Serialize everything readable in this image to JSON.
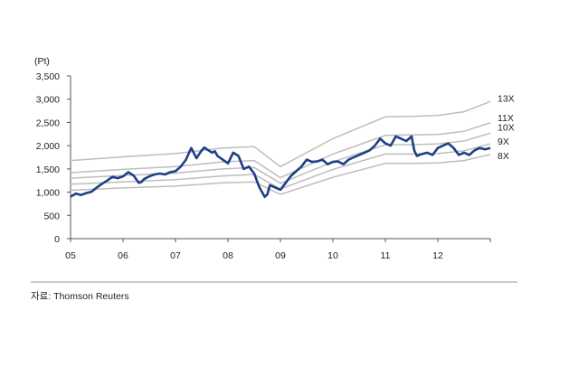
{
  "chart_data": {
    "type": "line",
    "y_unit_label": "(Pt)",
    "ylim": [
      0,
      3500
    ],
    "y_ticks": [
      0,
      500,
      1000,
      1500,
      2000,
      2500,
      3000,
      3500
    ],
    "y_tick_labels": [
      "0",
      "500",
      "1,000",
      "1,500",
      "2,000",
      "2,500",
      "3,000",
      "3,500"
    ],
    "xlim": [
      2005.0,
      2013.0
    ],
    "x_ticks": [
      2005,
      2006,
      2007,
      2008,
      2009,
      2010,
      2011,
      2012
    ],
    "x_tick_labels": [
      "05",
      "06",
      "07",
      "08",
      "09",
      "10",
      "11",
      "12"
    ],
    "grid": false,
    "source": "자료: Thomson Reuters",
    "main_color": "#1f3f86",
    "band_color": "#bdbdbd",
    "series": [
      {
        "x": [
          2005.0,
          2005.1,
          2005.2,
          2005.3,
          2005.4,
          2005.5,
          2005.6,
          2005.7,
          2005.8,
          2005.9,
          2006.0,
          2006.1,
          2006.2,
          2006.3,
          2006.35,
          2006.4,
          2006.5,
          2006.6,
          2006.7,
          2006.8,
          2006.9,
          2007.0,
          2007.1,
          2007.2,
          2007.3,
          2007.4,
          2007.5,
          2007.55,
          2007.6,
          2007.7,
          2007.75,
          2007.8,
          2007.9,
          2008.0,
          2008.1,
          2008.2,
          2008.3,
          2008.4,
          2008.5,
          2008.6,
          2008.7,
          2008.75,
          2008.8,
          2008.9,
          2009.0,
          2009.1,
          2009.2,
          2009.3,
          2009.4,
          2009.5,
          2009.6,
          2009.7,
          2009.8,
          2009.9,
          2010.0,
          2010.1,
          2010.2,
          2010.3,
          2010.4,
          2010.5,
          2010.6,
          2010.7,
          2010.8,
          2010.9,
          2011.0,
          2011.1,
          2011.2,
          2011.3,
          2011.4,
          2011.5,
          2011.55,
          2011.6,
          2011.65,
          2011.7,
          2011.8,
          2011.9,
          2012.0,
          2012.1,
          2012.2,
          2012.3,
          2012.4,
          2012.5,
          2012.6,
          2012.7,
          2012.8,
          2012.9,
          2013.0
        ],
        "values": [
          900,
          970,
          940,
          980,
          1010,
          1100,
          1180,
          1250,
          1330,
          1300,
          1340,
          1430,
          1360,
          1200,
          1220,
          1280,
          1340,
          1380,
          1400,
          1380,
          1430,
          1450,
          1550,
          1700,
          1950,
          1730,
          1900,
          1960,
          1920,
          1850,
          1880,
          1780,
          1700,
          1620,
          1850,
          1780,
          1500,
          1550,
          1400,
          1100,
          900,
          950,
          1150,
          1100,
          1050,
          1200,
          1350,
          1450,
          1550,
          1700,
          1650,
          1660,
          1700,
          1600,
          1650,
          1660,
          1600,
          1700,
          1750,
          1800,
          1850,
          1900,
          2000,
          2150,
          2050,
          2000,
          2200,
          2150,
          2100,
          2200,
          1900,
          1780,
          1800,
          1820,
          1850,
          1800,
          1950,
          2000,
          2050,
          1950,
          1800,
          1850,
          1800,
          1900,
          1950,
          1920,
          1950
        ]
      },
      {
        "name": "13X",
        "x": [
          2005.0,
          2006.0,
          2007.0,
          2007.9,
          2008.5,
          2009.0,
          2010.0,
          2011.0,
          2011.5,
          2012.0,
          2012.5,
          2013.0
        ],
        "values": [
          1680,
          1760,
          1830,
          1950,
          1980,
          1550,
          2150,
          2620,
          2630,
          2650,
          2730,
          2950
        ]
      },
      {
        "name": "11X",
        "x": [
          2005.0,
          2006.0,
          2007.0,
          2007.9,
          2008.5,
          2009.0,
          2010.0,
          2011.0,
          2011.5,
          2012.0,
          2012.5,
          2013.0
        ],
        "values": [
          1420,
          1490,
          1550,
          1650,
          1680,
          1310,
          1820,
          2220,
          2230,
          2240,
          2310,
          2490
        ]
      },
      {
        "name": "10X",
        "x": [
          2005.0,
          2006.0,
          2007.0,
          2007.9,
          2008.5,
          2009.0,
          2010.0,
          2011.0,
          2011.5,
          2012.0,
          2012.5,
          2013.0
        ],
        "values": [
          1300,
          1360,
          1410,
          1500,
          1530,
          1190,
          1650,
          2020,
          2020,
          2040,
          2100,
          2270
        ]
      },
      {
        "name": "9X",
        "x": [
          2005.0,
          2006.0,
          2007.0,
          2007.9,
          2008.5,
          2009.0,
          2010.0,
          2011.0,
          2011.5,
          2012.0,
          2012.5,
          2013.0
        ],
        "values": [
          1170,
          1220,
          1270,
          1350,
          1380,
          1070,
          1490,
          1820,
          1820,
          1830,
          1890,
          2040
        ]
      },
      {
        "name": "8X",
        "x": [
          2005.0,
          2006.0,
          2007.0,
          2007.9,
          2008.5,
          2009.0,
          2010.0,
          2011.0,
          2011.5,
          2012.0,
          2012.5,
          2013.0
        ],
        "values": [
          1040,
          1090,
          1130,
          1200,
          1220,
          950,
          1320,
          1620,
          1620,
          1630,
          1680,
          1810
        ]
      }
    ]
  }
}
